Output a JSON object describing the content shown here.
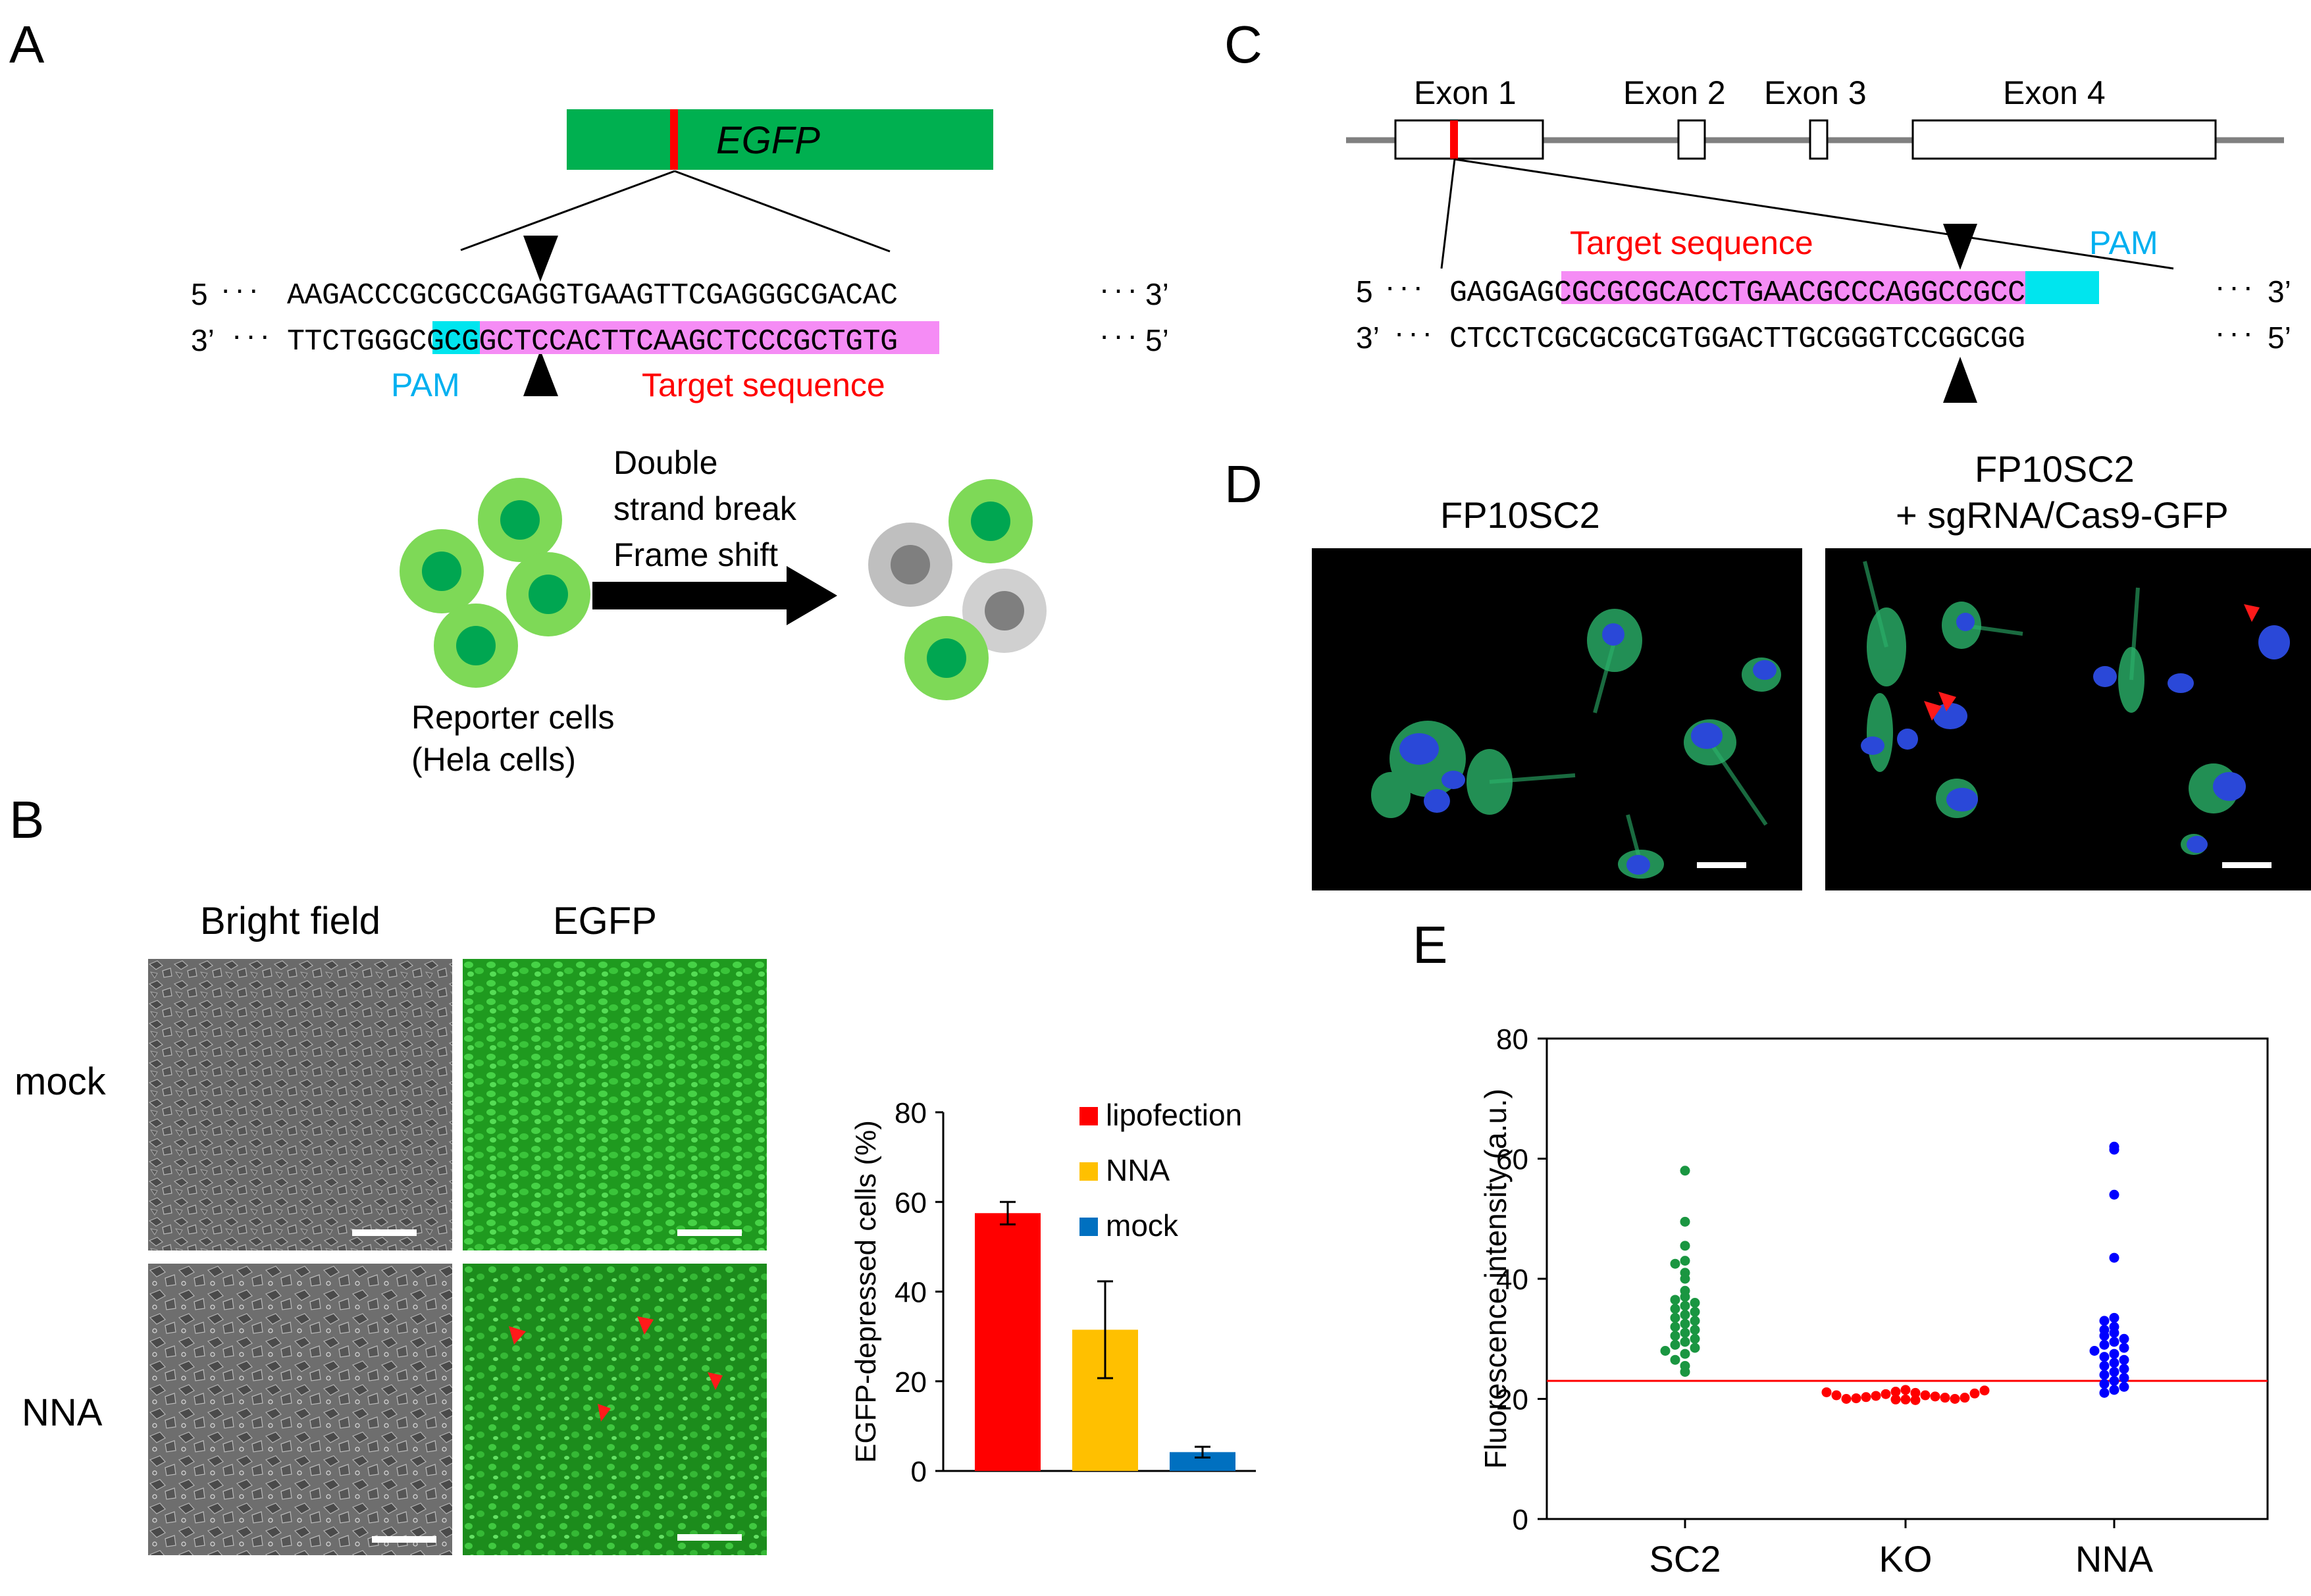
{
  "panels": {
    "a": {
      "letter": "A",
      "gene_label": "EGFP",
      "seq_top_left": "5",
      "seq_top": "AAGACCCGCGCCGAGGTGAAGTTCGAGGGCGACAC",
      "seq_top_right": "3’",
      "seq_bottom_left": "3’",
      "seq_bottom": "TTCTGGGCGCGGCTCCACTTCAAGCTCCCGCTGTG",
      "seq_bottom_right": "5’",
      "pam_label": "PAM",
      "target_label": "Target sequence",
      "arrow_text": [
        "Double",
        "strand break",
        "Frame shift"
      ],
      "reporter_text": [
        "Reporter cells",
        "(Hela cells)"
      ]
    },
    "b": {
      "letter": "B",
      "col_labels": [
        "Bright field",
        "EGFP"
      ],
      "row_labels": [
        "mock",
        "NNA"
      ]
    },
    "c": {
      "letter": "C",
      "exons": [
        "Exon 1",
        "Exon 2",
        "Exon 3",
        "Exon 4"
      ],
      "target_label": "Target sequence",
      "pam_label": "PAM",
      "seq_top_left": "5",
      "seq_top": "GAGGAGCGCGCGCACCTGAACGCCCAGGCCGCC",
      "seq_top_right": "3’",
      "seq_bottom_left": "3’",
      "seq_bottom": "CTCCTCGCGCGCGTGGACTTGCGGGTCCGGCGG",
      "seq_bottom_right": "5’"
    },
    "d": {
      "letter": "D",
      "left_title": "FP10SC2",
      "right_title_1": "FP10SC2",
      "right_title_2": "+ sgRNA/Cas9-GFP"
    },
    "e": {
      "letter": "E"
    }
  },
  "chart_data": [
    {
      "type": "bar",
      "categories": [
        "lipofection",
        "NNA",
        "mock"
      ],
      "values": [
        57.5,
        31.5,
        4.2
      ],
      "errors": [
        2.5,
        10.8,
        1.2
      ],
      "colors": [
        "#ff0000",
        "#ffc000",
        "#0070c0"
      ],
      "legend": [
        "lipofection",
        "NNA",
        "mock"
      ],
      "legend_position": "top-right",
      "ylabel": "EGFP-depressed cells (%)",
      "ylim": [
        0,
        80
      ],
      "yticks": [
        0,
        20,
        40,
        60,
        80
      ]
    },
    {
      "type": "scatter",
      "categories": [
        "SC2",
        "KO",
        "NNA"
      ],
      "ylabel": "Fluorescence intensity (a.u.)",
      "ylim": [
        0,
        80
      ],
      "yticks": [
        0,
        20,
        40,
        60,
        80
      ],
      "threshold": 23,
      "threshold_color": "#ff0000",
      "series": [
        {
          "category": "SC2",
          "color": "#1a9641",
          "values": [
            58,
            49.5,
            45.5,
            43,
            42.5,
            41,
            40,
            38,
            37,
            36.5,
            36,
            35.5,
            35,
            34.5,
            34,
            33.5,
            33,
            32.5,
            32,
            31.5,
            31,
            30.5,
            30,
            29.5,
            29,
            28.5,
            28,
            27.5,
            26.5,
            25.5,
            24.5
          ]
        },
        {
          "category": "KO",
          "color": "#ff0000",
          "values": [
            21.5,
            21.2,
            21.0,
            20.8,
            20.6,
            20.5,
            20.4,
            20.3,
            20.2,
            20.1,
            20.0,
            20.0,
            19.9,
            19.9,
            19.8,
            20.2,
            20.6,
            20.9,
            21.1,
            21.4
          ]
        },
        {
          "category": "NNA",
          "color": "#0000ff",
          "values": [
            62,
            61.5,
            54,
            43.5,
            33.5,
            33,
            32,
            31.5,
            31,
            30.5,
            30,
            29.5,
            29,
            28.5,
            28,
            27.5,
            27,
            26.5,
            26,
            25.5,
            25,
            24.5,
            24,
            23.5,
            23,
            22.5,
            22,
            21.5,
            21
          ]
        }
      ]
    }
  ]
}
